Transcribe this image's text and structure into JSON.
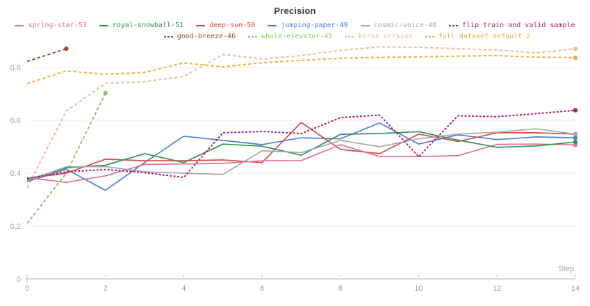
{
  "title": "Precision",
  "axis": {
    "x_label": "Step",
    "x_tick_labels": [
      "0",
      "2",
      "4",
      "6",
      "8",
      "10",
      "12",
      "14"
    ],
    "y_tick_labels": [
      "0",
      "0.2",
      "0.4",
      "0.6",
      "0.8"
    ]
  },
  "legend": {
    "rows": [
      [
        "spring-star-53",
        "royal-snowball-51",
        "deep-sun-50",
        "jumping-paper-49",
        "cosmic-voice-48",
        "flip train and valid sample"
      ],
      [
        "good-breeze-46",
        "whole-elevator-45",
        "keras version",
        "full dataset default 2"
      ]
    ]
  },
  "chart_data": {
    "type": "line",
    "title": "Precision",
    "xlabel": "Step",
    "ylabel": "",
    "xlim": [
      0,
      14
    ],
    "ylim": [
      0,
      0.9
    ],
    "x_ticks": [
      0,
      2,
      4,
      6,
      8,
      10,
      12,
      14
    ],
    "y_ticks": [
      0,
      0.2,
      0.4,
      0.6,
      0.8
    ],
    "grid": true,
    "legend_position": "top",
    "series": [
      {
        "name": "whole-elevator-45",
        "color": "#8cc859",
        "dash": "dashed",
        "x": [
          0,
          1,
          2
        ],
        "values": [
          0.21,
          0.4,
          0.703
        ]
      },
      {
        "name": "keras version",
        "color": "#f4b7a0",
        "dash": "dashed",
        "x": [
          0,
          1,
          2,
          3,
          4,
          5,
          6,
          7,
          8,
          9,
          10,
          11,
          12,
          13,
          14
        ],
        "values": [
          0.345,
          0.635,
          0.74,
          0.746,
          0.766,
          0.849,
          0.832,
          0.845,
          0.865,
          0.878,
          0.876,
          0.871,
          0.866,
          0.855,
          0.871
        ]
      },
      {
        "name": "full dataset default 2",
        "color": "#f1b13c",
        "dash": "dashed",
        "x": [
          0,
          1,
          2,
          3,
          4,
          5,
          6,
          7,
          8,
          9,
          10,
          11,
          12,
          13,
          14
        ],
        "values": [
          0.739,
          0.787,
          0.774,
          0.781,
          0.817,
          0.802,
          0.818,
          0.827,
          0.835,
          0.838,
          0.84,
          0.843,
          0.845,
          0.839,
          0.837
        ]
      },
      {
        "name": "good-breeze-46",
        "color": "#9a4c3c",
        "dash": "dashed",
        "x": [
          0,
          1
        ],
        "values": [
          0.823,
          0.871
        ]
      },
      {
        "name": "jumping-paper-49",
        "color": "#4a7fdc",
        "dash": "solid",
        "x": [
          0,
          1,
          2,
          3,
          4,
          5,
          6,
          7,
          8,
          9,
          10,
          11,
          12,
          13,
          14
        ],
        "values": [
          0.368,
          0.415,
          0.335,
          0.44,
          0.54,
          0.524,
          0.508,
          0.534,
          0.53,
          0.59,
          0.51,
          0.545,
          0.527,
          0.537,
          0.534
        ]
      },
      {
        "name": "deep-sun-50",
        "color": "#dc4a41",
        "dash": "solid",
        "x": [
          0,
          1,
          2,
          3,
          4,
          5,
          6,
          7,
          8,
          9,
          10,
          11,
          12,
          13,
          14
        ],
        "values": [
          0.38,
          0.4,
          0.453,
          0.447,
          0.447,
          0.45,
          0.44,
          0.592,
          0.49,
          0.474,
          0.548,
          0.52,
          0.553,
          0.553,
          0.548
        ]
      },
      {
        "name": "spring-star-53",
        "color": "#e0719e",
        "dash": "solid",
        "x": [
          0,
          1,
          2,
          3,
          4,
          5,
          6,
          7,
          8,
          9,
          10,
          11,
          12,
          13,
          14
        ],
        "values": [
          0.383,
          0.365,
          0.39,
          0.433,
          0.435,
          0.437,
          0.447,
          0.448,
          0.508,
          0.463,
          0.463,
          0.466,
          0.509,
          0.51,
          0.507
        ]
      },
      {
        "name": "royal-snowball-51",
        "color": "#2e934f",
        "dash": "solid",
        "x": [
          0,
          1,
          2,
          3,
          4,
          5,
          6,
          7,
          8,
          9,
          10,
          11,
          12,
          13,
          14
        ],
        "values": [
          0.375,
          0.42,
          0.43,
          0.474,
          0.44,
          0.51,
          0.502,
          0.468,
          0.547,
          0.55,
          0.557,
          0.525,
          0.498,
          0.503,
          0.518
        ]
      },
      {
        "name": "cosmic-voice-48",
        "color": "#a4a7ae",
        "dash": "solid",
        "x": [
          0,
          1,
          2,
          3,
          4,
          5,
          6,
          7,
          8,
          9,
          10,
          11,
          12,
          13,
          14
        ],
        "values": [
          0.372,
          0.424,
          0.425,
          0.405,
          0.4,
          0.395,
          0.485,
          0.478,
          0.524,
          0.5,
          0.53,
          0.548,
          0.555,
          0.568,
          0.548
        ]
      },
      {
        "name": "flip train and valid sample",
        "color": "#b01d6e",
        "dash": "dashed-short",
        "x": [
          0,
          1,
          2,
          3,
          4,
          5,
          6,
          7,
          8,
          9,
          10,
          11,
          12,
          13,
          14
        ],
        "values": [
          0.38,
          0.405,
          0.414,
          0.402,
          0.384,
          0.553,
          0.558,
          0.55,
          0.61,
          0.62,
          0.463,
          0.617,
          0.614,
          0.625,
          0.638
        ]
      }
    ]
  },
  "style": {
    "grid_color": "#eeeef1",
    "axis_color": "#d9d9de",
    "tick_color": "#cfcfd6",
    "label_color": "#9b9ea6",
    "title_color": "#3b3e44"
  }
}
